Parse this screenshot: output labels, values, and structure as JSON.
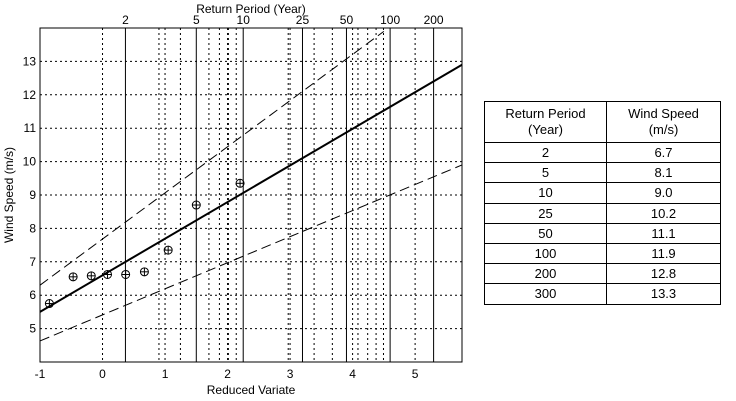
{
  "chart_data": {
    "type": "scatter",
    "xlabel": "Reduced Variate",
    "ylabel": "Wind Speed (m/s)",
    "top_axis_label": "Return Period (Year)",
    "xlim": [
      -1,
      5.75
    ],
    "ylim": [
      4,
      14
    ],
    "x_ticks": [
      -1,
      0,
      1,
      2,
      3,
      4,
      5
    ],
    "y_ticks": [
      5,
      6,
      7,
      8,
      9,
      10,
      11,
      12,
      13
    ],
    "top_ticks": [
      {
        "label": "2",
        "return_period": 2
      },
      {
        "label": "5",
        "return_period": 5
      },
      {
        "label": "10",
        "return_period": 10
      },
      {
        "label": "25",
        "return_period": 25
      },
      {
        "label": "50",
        "return_period": 50
      },
      {
        "label": "100",
        "return_period": 100
      },
      {
        "label": "200",
        "return_period": 200
      }
    ],
    "return_period_gridlines": [
      2,
      3,
      4,
      5,
      6,
      7,
      8,
      9,
      10,
      20,
      25,
      30,
      40,
      50,
      60,
      70,
      80,
      90,
      100,
      200
    ],
    "solid_gridlines": [
      2,
      5,
      10,
      25,
      50,
      100,
      200
    ],
    "grid": true,
    "series": [
      {
        "style": "markers",
        "marker": "circled-plus",
        "x": [
          -0.85,
          -0.47,
          -0.18,
          0.08,
          0.37,
          0.67,
          1.05,
          1.5,
          2.2
        ],
        "y": [
          5.75,
          6.55,
          6.58,
          6.62,
          6.62,
          6.7,
          7.35,
          8.7,
          9.35
        ]
      },
      {
        "style": "solid",
        "x": [
          -1,
          5.75
        ],
        "y": [
          5.5,
          12.9
        ]
      },
      {
        "style": "dashed",
        "x": [
          -1,
          4.5
        ],
        "y": [
          6.3,
          13.9
        ]
      },
      {
        "style": "dashed",
        "x": [
          -1,
          5.75
        ],
        "y": [
          4.63,
          9.9
        ]
      }
    ]
  },
  "table": {
    "headers": [
      [
        "Return Period",
        "(Year)"
      ],
      [
        "Wind Speed",
        "(m/s)"
      ]
    ],
    "rows": [
      [
        "2",
        "6.7"
      ],
      [
        "5",
        "8.1"
      ],
      [
        "10",
        "9.0"
      ],
      [
        "25",
        "10.2"
      ],
      [
        "50",
        "11.1"
      ],
      [
        "100",
        "11.9"
      ],
      [
        "200",
        "12.8"
      ],
      [
        "300",
        "13.3"
      ]
    ]
  }
}
